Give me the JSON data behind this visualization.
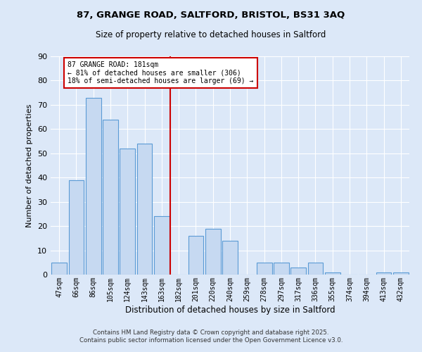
{
  "title": "87, GRANGE ROAD, SALTFORD, BRISTOL, BS31 3AQ",
  "subtitle": "Size of property relative to detached houses in Saltford",
  "xlabel": "Distribution of detached houses by size in Saltford",
  "ylabel": "Number of detached properties",
  "bar_color": "#c6d9f1",
  "bar_edge_color": "#5b9bd5",
  "background_color": "#dce8f8",
  "grid_color": "#ffffff",
  "categories": [
    "47sqm",
    "66sqm",
    "86sqm",
    "105sqm",
    "124sqm",
    "143sqm",
    "163sqm",
    "182sqm",
    "201sqm",
    "220sqm",
    "240sqm",
    "259sqm",
    "278sqm",
    "297sqm",
    "317sqm",
    "336sqm",
    "355sqm",
    "374sqm",
    "394sqm",
    "413sqm",
    "432sqm"
  ],
  "values": [
    5,
    39,
    73,
    64,
    52,
    54,
    24,
    0,
    16,
    19,
    14,
    0,
    5,
    5,
    3,
    5,
    1,
    0,
    0,
    1,
    1
  ],
  "ylim": [
    0,
    90
  ],
  "yticks": [
    0,
    10,
    20,
    30,
    40,
    50,
    60,
    70,
    80,
    90
  ],
  "vline_x_index": 7,
  "vline_color": "#cc0000",
  "annotation_title": "87 GRANGE ROAD: 181sqm",
  "annotation_line1": "← 81% of detached houses are smaller (306)",
  "annotation_line2": "18% of semi-detached houses are larger (69) →",
  "annotation_box_color": "#cc0000",
  "footer_line1": "Contains HM Land Registry data © Crown copyright and database right 2025.",
  "footer_line2": "Contains public sector information licensed under the Open Government Licence v3.0."
}
